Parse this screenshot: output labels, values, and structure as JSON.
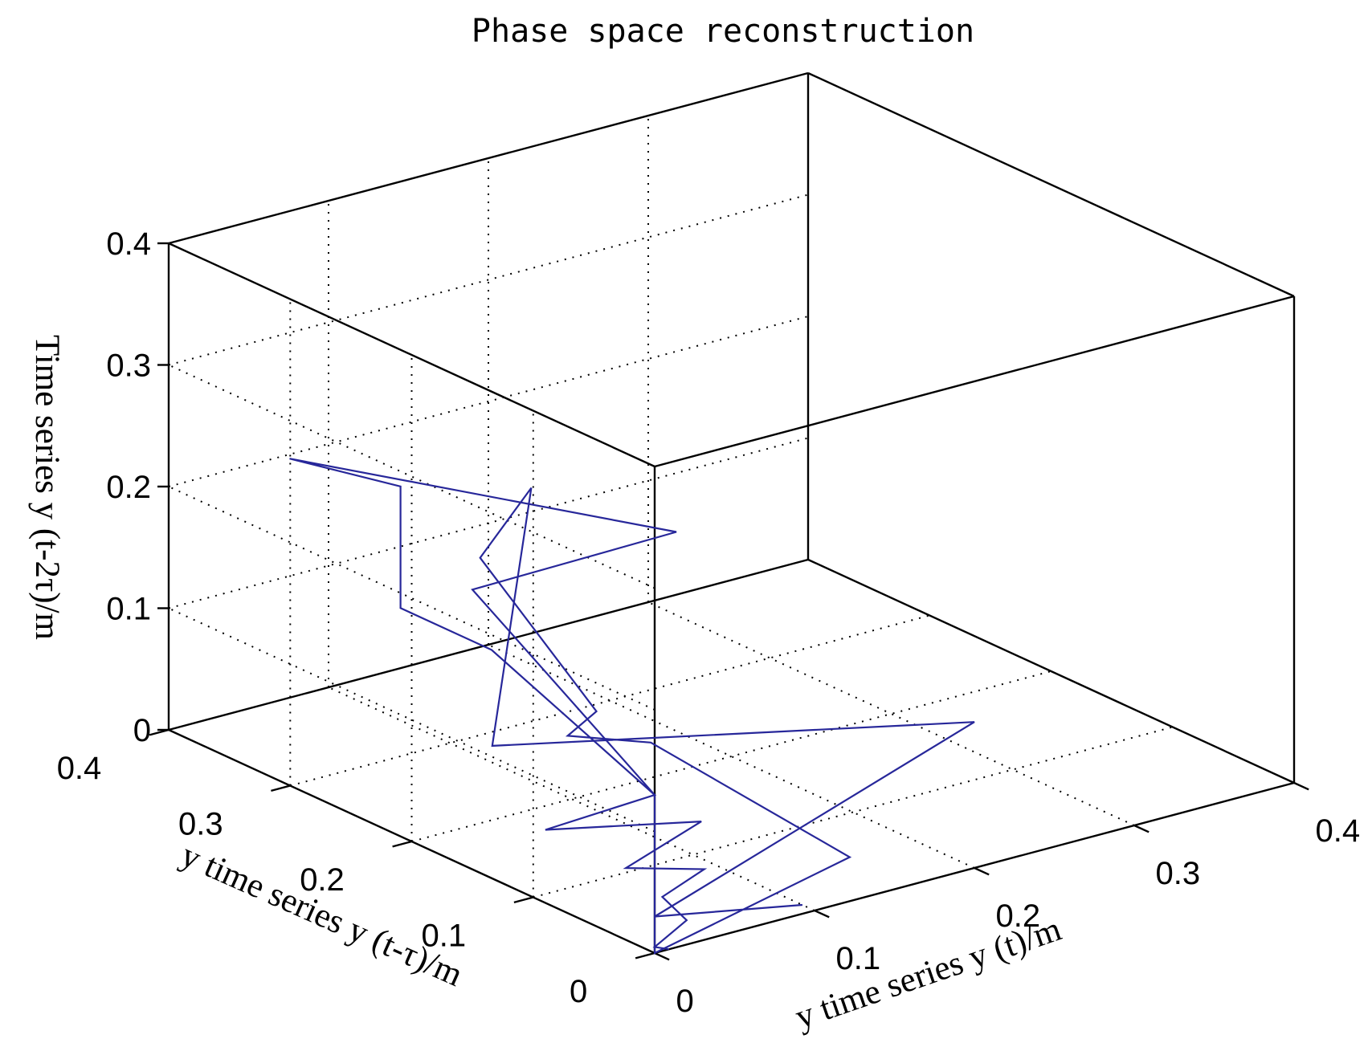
{
  "chart_data": {
    "type": "line3d",
    "title": "Phase space reconstruction",
    "xlabel": "y time series y (t)/m",
    "ylabel": "y time series y (t-τ)/m",
    "zlabel": "Time series y (t-2τ)/m",
    "xlim": [
      0,
      0.4
    ],
    "ylim": [
      0,
      0.4
    ],
    "zlim": [
      0,
      0.4
    ],
    "xticks": [
      "0",
      "0.1",
      "0.2",
      "0.3",
      "0.4"
    ],
    "yticks": [
      "0",
      "0.1",
      "0.2",
      "0.3",
      "0.4"
    ],
    "zticks": [
      "0",
      "0.1",
      "0.2",
      "0.3",
      "0.4"
    ],
    "grid": true,
    "series": [
      {
        "color": "#27279a",
        "points": [
          [
            0.009,
            0.0,
            0.0
          ],
          [
            0.0,
            0.0,
            0.005
          ],
          [
            0.02,
            0.0,
            0.02
          ],
          [
            0.02,
            0.02,
            0.03
          ],
          [
            0.05,
            0.025,
            0.04
          ],
          [
            0.02,
            0.05,
            0.04
          ],
          [
            0.09,
            0.08,
            0.04
          ],
          [
            0.0,
            0.09,
            0.06
          ],
          [
            0.0,
            0.0,
            0.13
          ],
          [
            0.05,
            0.2,
            0.14
          ],
          [
            0.05,
            0.275,
            0.14
          ],
          [
            0.05,
            0.275,
            0.24
          ],
          [
            0.03,
            0.34,
            0.24
          ],
          [
            0.12,
            0.14,
            0.24
          ],
          [
            0.0,
            0.15,
            0.23
          ],
          [
            0.0,
            0.0,
            0.13
          ],
          [
            0.0,
            0.0,
            0.0
          ],
          [
            0.16,
            0.05,
            0.0
          ],
          [
            0.18,
            0.24,
            0.0
          ],
          [
            0.09,
            0.19,
            0.06
          ],
          [
            0.07,
            0.14,
            0.11
          ],
          [
            0.02,
            0.17,
            0.24
          ],
          [
            0.09,
            0.22,
            0.25
          ],
          [
            0.02,
            0.16,
            0.09
          ],
          [
            0.2,
            0.0,
            0.12
          ],
          [
            0.0,
            0.0,
            0.03
          ],
          [
            0.1,
            0.01,
            0.0
          ]
        ]
      }
    ]
  }
}
